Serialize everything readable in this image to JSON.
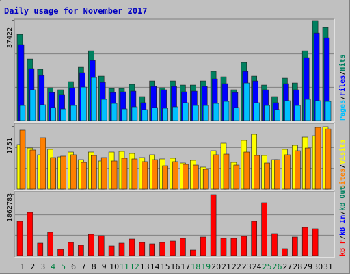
{
  "title": "Daily usage for November 2017",
  "title_color": "#0000c0",
  "categories": [
    "1",
    "2",
    "3",
    "4",
    "5",
    "6",
    "7",
    "8",
    "9",
    "10",
    "11",
    "12",
    "13",
    "14",
    "15",
    "16",
    "17",
    "18",
    "19",
    "20",
    "21",
    "22",
    "23",
    "24",
    "25",
    "26",
    "27",
    "28",
    "29",
    "30",
    "31"
  ],
  "category_colors": [
    "#000000",
    "#000000",
    "#000000",
    "#008040",
    "#008040",
    "#000000",
    "#000000",
    "#000000",
    "#000000",
    "#000000",
    "#008040",
    "#008040",
    "#000000",
    "#000000",
    "#000000",
    "#000000",
    "#000000",
    "#008040",
    "#008040",
    "#000000",
    "#000000",
    "#000000",
    "#000000",
    "#000000",
    "#008040",
    "#008040",
    "#000000",
    "#000000",
    "#000000",
    "#000000",
    "#000000"
  ],
  "legend_separator": "/",
  "chart_data": [
    {
      "type": "bar",
      "ylim": [
        0,
        37422
      ],
      "yticks": [
        37422
      ],
      "series": [
        {
          "name": "Hits",
          "color": "#008060",
          "values": [
            32256,
            23040,
            19200,
            12288,
            11520,
            14592,
            19968,
            26112,
            16640,
            12032,
            12032,
            13568,
            8960,
            14848,
            12288,
            14848,
            13312,
            13312,
            14848,
            18432,
            16384,
            11520,
            21760,
            16640,
            13312,
            8960,
            15872,
            14080,
            26112,
            37422,
            34816
          ]
        },
        {
          "name": "Files",
          "color": "#0000ff",
          "values": [
            28416,
            19456,
            16896,
            10496,
            9728,
            12288,
            17920,
            22528,
            14336,
            10496,
            10752,
            11008,
            6656,
            12800,
            11520,
            12800,
            10752,
            11008,
            12800,
            15616,
            13824,
            10496,
            18432,
            14848,
            11520,
            6656,
            13824,
            11520,
            23552,
            32768,
            30976
          ]
        },
        {
          "name": "Pages",
          "color": "#00c0ff",
          "values": [
            5632,
            11520,
            5888,
            4864,
            4352,
            5632,
            12544,
            16128,
            7936,
            6400,
            4352,
            5120,
            4096,
            4864,
            4608,
            5120,
            6656,
            5632,
            5632,
            6400,
            7168,
            4864,
            14080,
            6656,
            5632,
            4096,
            7424,
            5632,
            7936,
            7424,
            7168
          ]
        }
      ]
    },
    {
      "type": "bar",
      "ylim": [
        0,
        1751
      ],
      "yticks": [
        1751
      ],
      "series": [
        {
          "name": "Visits",
          "color": "#ffff00",
          "values": [
            1251,
            1154,
            962,
            1116,
            904,
            1039,
            827,
            1039,
            789,
            1039,
            1058,
            1000,
            885,
            962,
            847,
            866,
            731,
            808,
            616,
            1077,
            1289,
            750,
            1366,
            1539,
            943,
            827,
            1116,
            1231,
            1462,
            1500,
            1751
          ]
        },
        {
          "name": "Sites",
          "color": "#ff8000",
          "values": [
            1655,
            1097,
            1443,
            885,
            924,
            962,
            750,
            943,
            885,
            789,
            866,
            847,
            770,
            827,
            654,
            770,
            693,
            673,
            558,
            962,
            981,
            673,
            1039,
            943,
            731,
            827,
            962,
            1077,
            1154,
            1732,
            1690
          ]
        }
      ]
    },
    {
      "type": "bar",
      "ylim": [
        0,
        1862783
      ],
      "yticks": [
        1862783
      ],
      "series": [
        {
          "name": "kB F",
          "color": "#ff0000",
          "values": [
            1046500,
            1318590,
            376740,
            711620,
            188370,
            397670,
            313950,
            648830,
            606970,
            293020,
            376740,
            502320,
            397670,
            355810,
            397670,
            439530,
            523250,
            167440,
            565110,
            1862783,
            523250,
            523250,
            586040,
            1046500,
            1611610,
            669760,
            209300,
            565110,
            858130,
            816270,
            0
          ]
        }
      ],
      "legend_extra": [
        {
          "text": "kB In",
          "color": "#0000ff"
        },
        {
          "text": "kB Out",
          "color": "#008060"
        }
      ]
    }
  ]
}
